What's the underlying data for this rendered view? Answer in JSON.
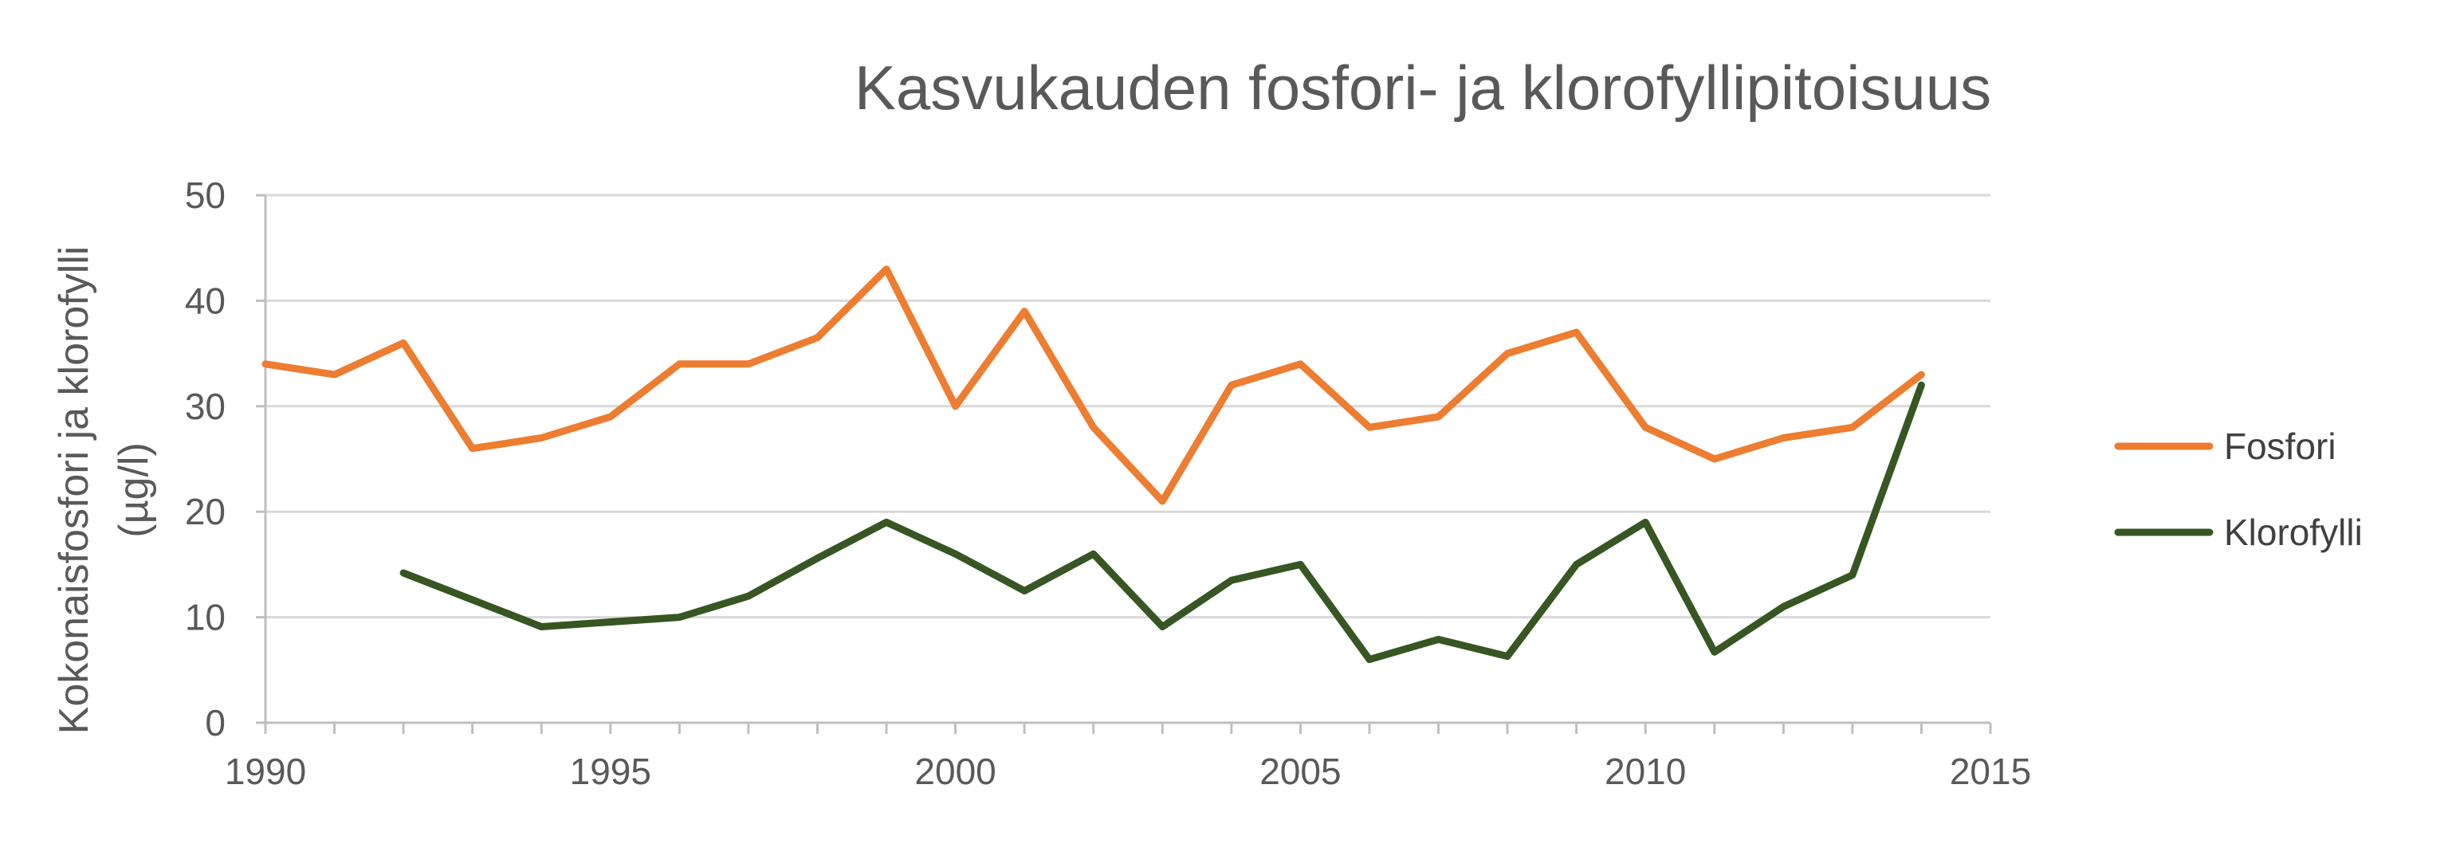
{
  "chart_data": {
    "type": "line",
    "title": "Kasvukauden fosfori- ja klorofyllipitoisuus",
    "ylabel_lines": [
      "Kokonaisfosfori ja klorofylli",
      "(µg/l)"
    ],
    "xlabel": "",
    "xlim": [
      1990,
      2015
    ],
    "ylim": [
      0,
      50
    ],
    "x_ticks": [
      1990,
      1995,
      2000,
      2005,
      2010,
      2015
    ],
    "y_ticks": [
      0,
      10,
      20,
      30,
      40,
      50
    ],
    "grid": true,
    "legend_position": "right",
    "series": [
      {
        "name": "Fosfori",
        "color": "#ED7D31",
        "points": [
          [
            1990,
            34
          ],
          [
            1991,
            33
          ],
          [
            1992,
            36
          ],
          [
            1993,
            26
          ],
          [
            1994,
            27
          ],
          [
            1995,
            29
          ],
          [
            1996,
            34
          ],
          [
            1997,
            34
          ],
          [
            1998,
            36.5
          ],
          [
            1999,
            43
          ],
          [
            2000,
            30
          ],
          [
            2001,
            39
          ],
          [
            2002,
            28
          ],
          [
            2003,
            21
          ],
          [
            2004,
            32
          ],
          [
            2005,
            34
          ],
          [
            2006,
            28
          ],
          [
            2007,
            29
          ],
          [
            2008,
            35
          ],
          [
            2009,
            37
          ],
          [
            2010,
            28
          ],
          [
            2011,
            25
          ],
          [
            2012,
            27
          ],
          [
            2013,
            28
          ],
          [
            2014,
            33
          ]
        ]
      },
      {
        "name": "Klorofylli",
        "color": "#375623",
        "points": [
          [
            1992,
            14.2
          ],
          [
            1994,
            9.1
          ],
          [
            1996,
            10
          ],
          [
            1997,
            12
          ],
          [
            1998,
            15.6
          ],
          [
            1999,
            19
          ],
          [
            2000,
            16
          ],
          [
            2001,
            12.5
          ],
          [
            2002,
            16
          ],
          [
            2003,
            9.1
          ],
          [
            2004,
            13.5
          ],
          [
            2005,
            15
          ],
          [
            2006,
            6
          ],
          [
            2007,
            7.9
          ],
          [
            2008,
            6.3
          ],
          [
            2009,
            15
          ],
          [
            2010,
            19
          ],
          [
            2011,
            6.7
          ],
          [
            2012,
            11
          ],
          [
            2013,
            14
          ],
          [
            2014,
            32
          ]
        ]
      }
    ]
  }
}
